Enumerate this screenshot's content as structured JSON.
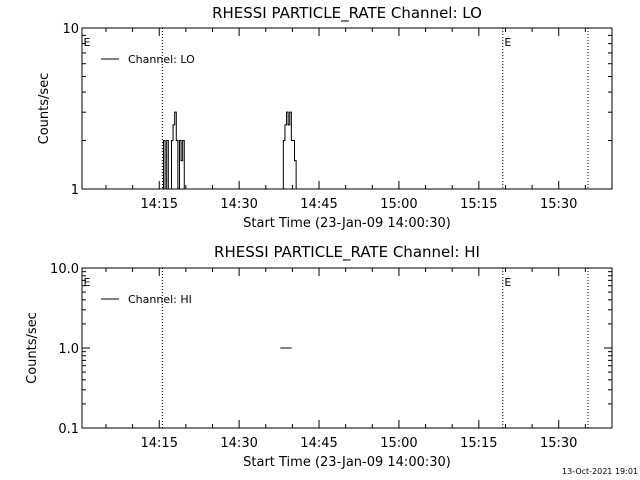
{
  "footer": {
    "timestamp": "13-Oct-2021 19:01"
  },
  "chart_data": [
    {
      "type": "line",
      "title": "RHESSI PARTICLE_RATE Channel: LO",
      "xlabel": "Start Time (23-Jan-09 14:00:30)",
      "ylabel": "Counts/sec",
      "yscale": "log",
      "xlim": [
        0.5,
        100
      ],
      "ylim": [
        1,
        10
      ],
      "x_tick_minutes": [
        15,
        30,
        45,
        60,
        75,
        90
      ],
      "x_tick_labels": [
        "14:15",
        "14:30",
        "14:45",
        "15:00",
        "15:15",
        "15:30"
      ],
      "y_tick_values": [
        1,
        10
      ],
      "y_tick_labels": [
        "1",
        "10"
      ],
      "legend": {
        "label": "Channel: LO",
        "position": "top-left"
      },
      "vertical_markers_minutes": [
        15.6,
        79.5,
        95.5
      ],
      "event_labels": [
        {
          "text": "E",
          "x_minutes": 0.6
        },
        {
          "text": "E",
          "x_minutes": 79.6
        }
      ],
      "series": [
        {
          "x": [
            15.5,
            15.8,
            16.1,
            16.4,
            16.7,
            17.0,
            17.3,
            17.6,
            17.9,
            18.2,
            18.5,
            18.8,
            19.1,
            19.4,
            19.7,
            20.0,
            38.0,
            38.3,
            38.6,
            38.9,
            39.2,
            39.5,
            39.8,
            40.1,
            40.4,
            40.7
          ],
          "y": [
            1,
            2,
            1,
            2,
            1,
            1,
            2,
            2.5,
            3,
            2,
            1,
            2,
            1.5,
            2,
            1,
            1,
            1,
            2,
            2.5,
            3,
            2.5,
            3,
            2,
            2,
            1.5,
            1
          ]
        }
      ]
    },
    {
      "type": "line",
      "title": "RHESSI PARTICLE_RATE Channel: HI",
      "xlabel": "Start Time (23-Jan-09 14:00:30)",
      "ylabel": "Counts/sec",
      "yscale": "log",
      "xlim": [
        0.5,
        100
      ],
      "ylim": [
        0.1,
        10
      ],
      "x_tick_minutes": [
        15,
        30,
        45,
        60,
        75,
        90
      ],
      "x_tick_labels": [
        "14:15",
        "14:30",
        "14:45",
        "15:00",
        "15:15",
        "15:30"
      ],
      "y_tick_values": [
        0.1,
        1,
        10
      ],
      "y_tick_labels": [
        "0.1",
        "1.0",
        "10.0"
      ],
      "legend": {
        "label": "Channel: HI",
        "position": "top-left"
      },
      "vertical_markers_minutes": [
        15.6,
        79.5,
        95.5
      ],
      "event_labels": [
        {
          "text": "E",
          "x_minutes": 0.6
        },
        {
          "text": "E",
          "x_minutes": 79.6
        }
      ],
      "series": [
        {
          "x": [
            37.8,
            39.8
          ],
          "y": [
            1,
            1
          ]
        }
      ]
    }
  ]
}
